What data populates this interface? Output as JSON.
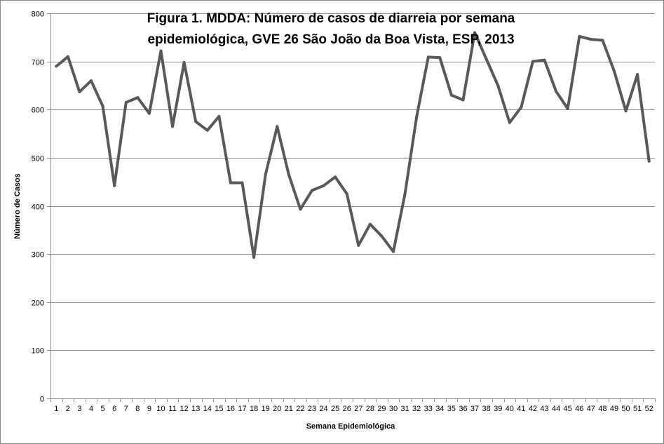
{
  "chart_data": {
    "type": "line",
    "title": "Figura 1. MDDA: Número de casos de diarreia por semana epidemiológica, GVE 26 São João da Boa Vista, ESP, 2013",
    "title_lines": [
      "Figura 1. MDDA: Número de casos de diarreia por semana",
      "epidemiológica, GVE 26 São João da Boa Vista, ESP, 2013"
    ],
    "xlabel": "Semana Epidemiológica",
    "ylabel": "Número de Casos",
    "categories": [
      "1",
      "2",
      "3",
      "4",
      "5",
      "6",
      "7",
      "8",
      "9",
      "10",
      "11",
      "12",
      "13",
      "14",
      "15",
      "16",
      "17",
      "18",
      "19",
      "20",
      "21",
      "22",
      "23",
      "24",
      "25",
      "26",
      "27",
      "28",
      "29",
      "30",
      "31",
      "32",
      "33",
      "34",
      "35",
      "36",
      "37",
      "38",
      "39",
      "40",
      "41",
      "42",
      "43",
      "44",
      "45",
      "46",
      "47",
      "48",
      "49",
      "50",
      "51",
      "52"
    ],
    "series": [
      {
        "values": [
          690,
          710,
          637,
          660,
          607,
          442,
          615,
          625,
          592,
          722,
          565,
          698,
          575,
          557,
          586,
          448,
          448,
          293,
          465,
          565,
          465,
          393,
          432,
          442,
          460,
          425,
          318,
          362,
          337,
          305,
          425,
          585,
          709,
          708,
          630,
          620,
          760,
          705,
          650,
          573,
          605,
          700,
          703,
          638,
          602,
          752,
          746,
          744,
          680,
          597,
          673,
          493
        ],
        "color": "#595959"
      }
    ],
    "ylim": [
      0,
      800
    ],
    "yticks": [
      0,
      100,
      200,
      300,
      400,
      500,
      600,
      700,
      800
    ],
    "grid": true,
    "legend": "none"
  }
}
